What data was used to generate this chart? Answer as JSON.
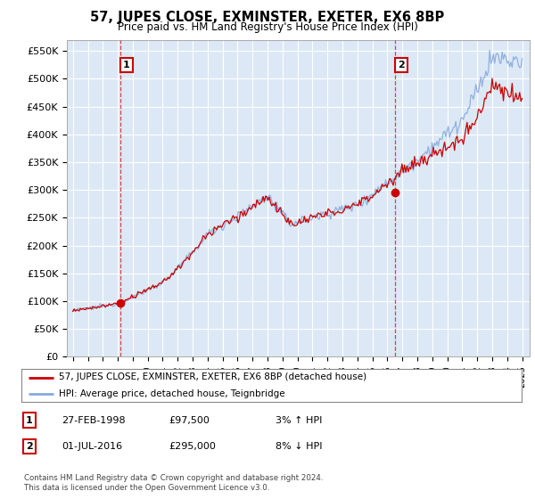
{
  "title": "57, JUPES CLOSE, EXMINSTER, EXETER, EX6 8BP",
  "subtitle": "Price paid vs. HM Land Registry's House Price Index (HPI)",
  "ylabel_ticks": [
    "£0",
    "£50K",
    "£100K",
    "£150K",
    "£200K",
    "£250K",
    "£300K",
    "£350K",
    "£400K",
    "£450K",
    "£500K",
    "£550K"
  ],
  "ytick_values": [
    0,
    50000,
    100000,
    150000,
    200000,
    250000,
    300000,
    350000,
    400000,
    450000,
    500000,
    550000
  ],
  "ylim": [
    0,
    570000
  ],
  "sale1": {
    "date_num": 1998.15,
    "price": 97500,
    "label": "1"
  },
  "sale2": {
    "date_num": 2016.5,
    "price": 295000,
    "label": "2"
  },
  "legend_line1": "57, JUPES CLOSE, EXMINSTER, EXETER, EX6 8BP (detached house)",
  "legend_line2": "HPI: Average price, detached house, Teignbridge",
  "table_rows": [
    {
      "num": "1",
      "date": "27-FEB-1998",
      "price": "£97,500",
      "hpi": "3% ↑ HPI"
    },
    {
      "num": "2",
      "date": "01-JUL-2016",
      "price": "£295,000",
      "hpi": "8% ↓ HPI"
    }
  ],
  "footnote1": "Contains HM Land Registry data © Crown copyright and database right 2024.",
  "footnote2": "This data is licensed under the Open Government Licence v3.0.",
  "line_color_red": "#cc0000",
  "line_color_blue": "#88aadd",
  "dashed_color": "#cc0000",
  "background_color": "#ffffff",
  "plot_bg_color": "#dce8f5",
  "grid_color": "#ffffff",
  "xmin": 1994.6,
  "xmax": 2025.5,
  "seed": 12345
}
